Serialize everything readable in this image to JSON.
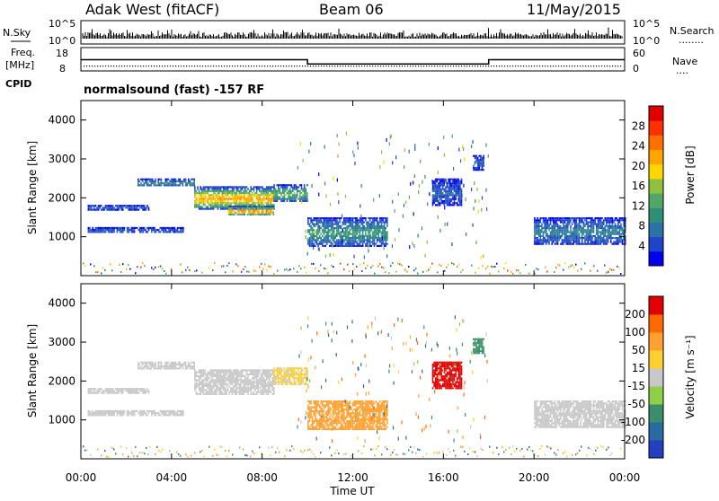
{
  "header": {
    "station": "Adak West (fitACF)",
    "beam": "Beam 06",
    "date": "11/May/2015"
  },
  "nsky_panel": {
    "left_label": "N.Sky",
    "left_ticks": [
      "10^5",
      "10^0"
    ],
    "right_ticks": [
      "10^5",
      "10^0"
    ],
    "right_label": "N.Search",
    "right_legend_line": "........"
  },
  "freq_panel": {
    "left_label_line1": "Freq.",
    "left_label_line2": "[MHz]",
    "left_ticks": [
      "18",
      "8"
    ],
    "right_ticks": [
      "60",
      "0"
    ],
    "right_label": "Nave",
    "right_legend_line": "....",
    "freq_steps": [
      {
        "start_hour": 0,
        "end_hour": 10,
        "mhz": 12.8
      },
      {
        "start_hour": 10,
        "end_hour": 18,
        "mhz": 11.0
      },
      {
        "start_hour": 18,
        "end_hour": 24,
        "mhz": 12.8
      }
    ]
  },
  "cpid": {
    "label": "CPID",
    "text": "normalsound (fast) -157 RF"
  },
  "chart_data": [
    {
      "type": "heatmap",
      "name": "Power",
      "x_ticks": [
        "00:00",
        "04:00",
        "08:00",
        "12:00",
        "16:00",
        "20:00",
        "00:00"
      ],
      "xlim_hours": [
        0,
        24
      ],
      "ylabel": "Slant Range [km]",
      "ylim_km": [
        0,
        4500
      ],
      "y_ticks": [
        "1000",
        "2000",
        "3000",
        "4000"
      ],
      "colorbar": {
        "label": "Power [dB]",
        "ticks": [
          "4",
          "8",
          "12",
          "16",
          "20",
          "24",
          "28"
        ],
        "colors": [
          "#0000ee",
          "#1d45c8",
          "#2a72a8",
          "#2f8f76",
          "#50a868",
          "#8fc040",
          "#ffd700",
          "#ffa500",
          "#ff7000",
          "#ff3000",
          "#e00000"
        ]
      },
      "echo_regions": [
        {
          "t0": 0.3,
          "t1": 4.5,
          "r0": 1100,
          "r1": 1250,
          "level": 0.15
        },
        {
          "t0": 0.3,
          "t1": 3.0,
          "r0": 1700,
          "r1": 1820,
          "level": 0.2
        },
        {
          "t0": 2.5,
          "t1": 5.0,
          "r0": 2300,
          "r1": 2500,
          "level": 0.3
        },
        {
          "t0": 5.0,
          "t1": 8.5,
          "r0": 1700,
          "r1": 2300,
          "level": 0.75
        },
        {
          "t0": 6.5,
          "t1": 8.5,
          "r0": 1550,
          "r1": 1800,
          "level": 0.85
        },
        {
          "t0": 8.5,
          "t1": 10.0,
          "r0": 1900,
          "r1": 2350,
          "level": 0.45
        },
        {
          "t0": 10.0,
          "t1": 13.5,
          "r0": 750,
          "r1": 1500,
          "level": 0.35
        },
        {
          "t0": 15.5,
          "t1": 16.8,
          "r0": 1800,
          "r1": 2500,
          "level": 0.15
        },
        {
          "t0": 17.3,
          "t1": 17.8,
          "r0": 2700,
          "r1": 3100,
          "level": 0.15
        },
        {
          "t0": 20.0,
          "t1": 24.0,
          "r0": 800,
          "r1": 1500,
          "level": 0.25
        }
      ]
    },
    {
      "type": "heatmap",
      "name": "Velocity",
      "x_ticks": [
        "00:00",
        "04:00",
        "08:00",
        "12:00",
        "16:00",
        "20:00",
        "00:00"
      ],
      "xlabel": "Time UT",
      "xlim_hours": [
        0,
        24
      ],
      "ylabel": "Slant Range [km]",
      "ylim_km": [
        0,
        4500
      ],
      "y_ticks": [
        "1000",
        "2000",
        "3000",
        "4000"
      ],
      "colorbar": {
        "label": "Velocity [m s^-1]",
        "ticks": [
          "200",
          "100",
          "50",
          "15",
          "-15",
          "-50",
          "-100",
          "-200"
        ],
        "colors": [
          "#2040c0",
          "#2a6aa0",
          "#3a8f6a",
          "#8ed048",
          "#c8c8c8",
          "#ffd030",
          "#ffa030",
          "#ff6a00",
          "#e00000"
        ]
      },
      "echo_regions": [
        {
          "t0": 0.3,
          "t1": 4.5,
          "r0": 1100,
          "r1": 1250,
          "vel": 0
        },
        {
          "t0": 0.3,
          "t1": 3.0,
          "r0": 1700,
          "r1": 1820,
          "vel": 0
        },
        {
          "t0": 2.5,
          "t1": 5.0,
          "r0": 2300,
          "r1": 2500,
          "vel": 0
        },
        {
          "t0": 5.0,
          "t1": 8.5,
          "r0": 1650,
          "r1": 2300,
          "vel": 0
        },
        {
          "t0": 8.5,
          "t1": 10.0,
          "r0": 1900,
          "r1": 2350,
          "vel": -20
        },
        {
          "t0": 10.0,
          "t1": 13.5,
          "r0": 750,
          "r1": 1500,
          "vel": -80
        },
        {
          "t0": 15.5,
          "t1": 16.8,
          "r0": 1800,
          "r1": 2500,
          "vel": -180
        },
        {
          "t0": 17.3,
          "t1": 17.8,
          "r0": 2700,
          "r1": 3100,
          "vel": 40
        },
        {
          "t0": 20.0,
          "t1": 24.0,
          "r0": 800,
          "r1": 1500,
          "vel": 0
        }
      ]
    }
  ]
}
